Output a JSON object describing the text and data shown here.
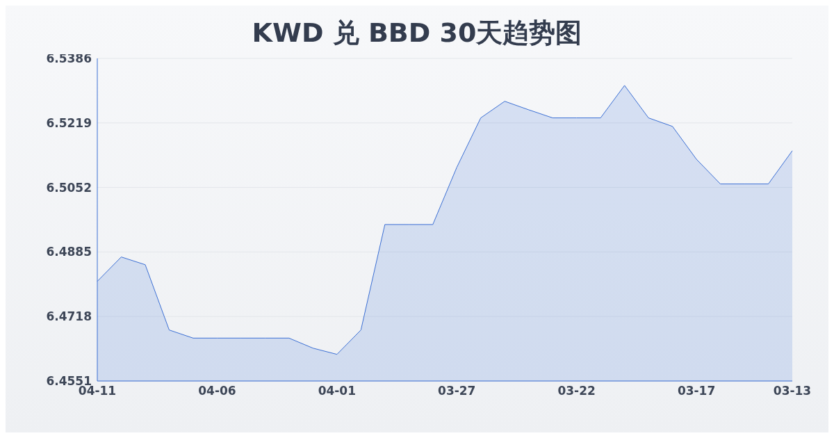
{
  "chart_data": {
    "type": "area",
    "title": "KWD 兑 BBD 30天趋势图",
    "categories": [
      "04-11",
      null,
      null,
      null,
      null,
      "04-06",
      null,
      null,
      null,
      null,
      "04-01",
      null,
      null,
      null,
      null,
      "03-27",
      null,
      null,
      null,
      null,
      "03-22",
      null,
      null,
      null,
      null,
      "03-17",
      null,
      null,
      null,
      "03-13"
    ],
    "series": [
      {
        "color": "#3b6fd4",
        "values": [
          6.4809,
          6.4872,
          6.4852,
          6.4683,
          6.4662,
          6.4662,
          6.4662,
          6.4662,
          6.4662,
          6.4636,
          6.462,
          6.4683,
          6.4956,
          6.4956,
          6.4956,
          6.5104,
          6.5232,
          6.5275,
          6.5253,
          6.5232,
          6.5232,
          6.5232,
          6.5316,
          6.5232,
          6.521,
          6.5125,
          6.5061,
          6.5061,
          6.5061,
          6.5147
        ]
      }
    ],
    "ylim": [
      6.4551,
      6.5386
    ],
    "yticks": [
      6.4551,
      6.4718,
      6.4885,
      6.5052,
      6.5219,
      6.5386
    ],
    "grid": "y",
    "marker": "none",
    "line_style": "solid"
  }
}
